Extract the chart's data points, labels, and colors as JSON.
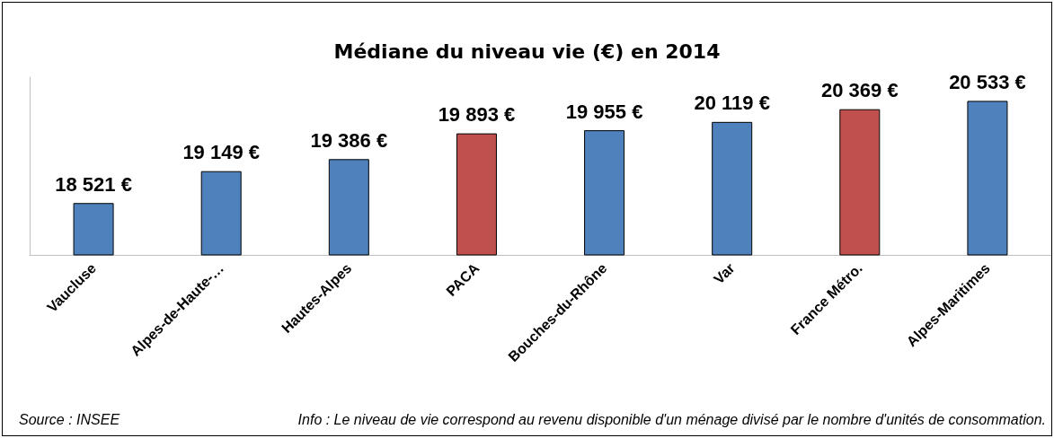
{
  "chart_data": {
    "type": "bar",
    "title": "Médiane du niveau vie (€) en 2014",
    "categories": [
      "Vaucluse",
      "Alpes-de-Haute-…",
      "Hautes-Alpes",
      "PACA",
      "Bouches-du-Rhône",
      "Var",
      "France Métro.",
      "Alpes-Maritimes"
    ],
    "values": [
      18521,
      19149,
      19386,
      19893,
      19955,
      20119,
      20369,
      20533
    ],
    "colors": [
      "#4f81bd",
      "#4f81bd",
      "#4f81bd",
      "#c0504d",
      "#4f81bd",
      "#4f81bd",
      "#c0504d",
      "#4f81bd"
    ],
    "value_labels": [
      "18 521 €",
      "19 149 €",
      "19 386 €",
      "19 893 €",
      "19 955 €",
      "20 119 €",
      "20 369 €",
      "20 533 €"
    ],
    "ylim": [
      17500,
      21000
    ],
    "tick_labels": "x",
    "grid": false,
    "annotations": [
      "Source : INSEE",
      "Info : Le niveau de vie correspond au revenu disponible d'un ménage divisé par le nombre d'unités de consommation."
    ]
  }
}
